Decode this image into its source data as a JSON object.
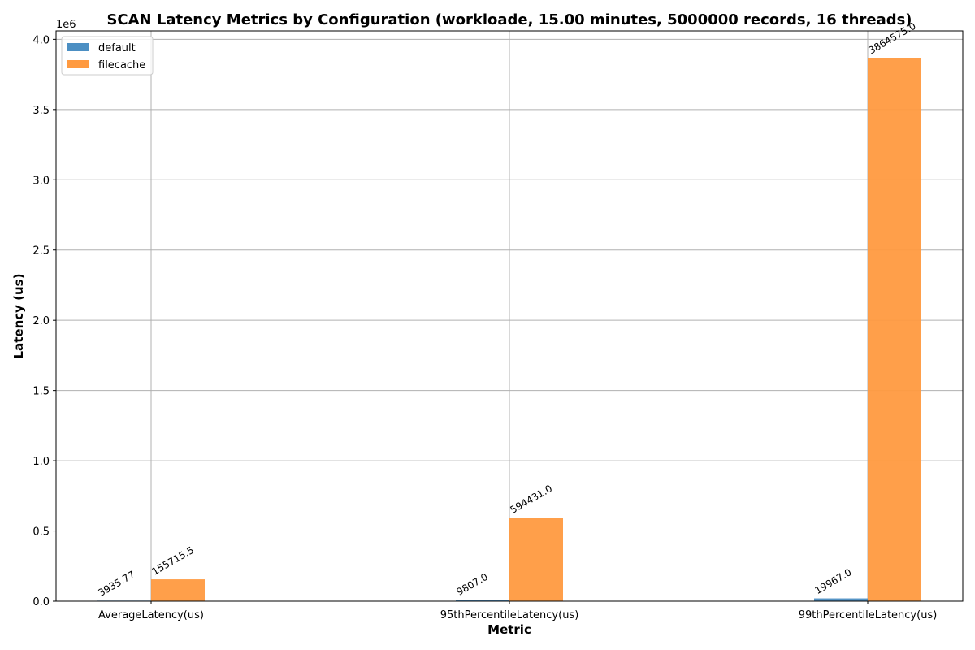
{
  "chart_data": {
    "type": "bar",
    "title": "SCAN Latency Metrics by Configuration (workloade, 15.00 minutes, 5000000 records, 16 threads)",
    "xlabel": "Metric",
    "ylabel": "Latency (us)",
    "y_scale_label": "1e6",
    "categories": [
      "AverageLatency(us)",
      "95thPercentileLatency(us)",
      "99thPercentileLatency(us)"
    ],
    "series": [
      {
        "name": "default",
        "color": "#4c8fc3",
        "values": [
          3935.77,
          9807.0,
          19967.0
        ],
        "labels": [
          "3935.77",
          "9807.0",
          "19967.0"
        ]
      },
      {
        "name": "filecache",
        "color": "#ff9a40",
        "values": [
          155715.5,
          594431.0,
          3864575.0
        ],
        "labels": [
          "155715.5",
          "594431.0",
          "3864575.0"
        ]
      }
    ],
    "ylim": [
      0,
      4060000
    ],
    "yticks": [
      0,
      500000,
      1000000,
      1500000,
      2000000,
      2500000,
      3000000,
      3500000,
      4000000
    ],
    "ytick_labels": [
      "0.0",
      "0.5",
      "1.0",
      "1.5",
      "2.0",
      "2.5",
      "3.0",
      "3.5",
      "4.0"
    ],
    "grid": true,
    "legend_position": "top-left"
  }
}
